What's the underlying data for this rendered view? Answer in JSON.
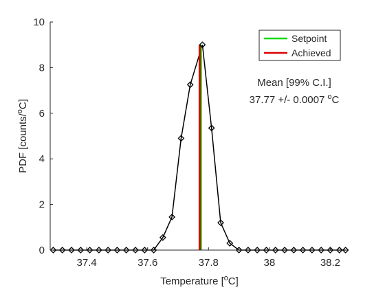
{
  "chart_data": {
    "type": "line",
    "xlabel": "Temperature [°C]",
    "ylabel": "PDF [counts/°C]",
    "xlim": [
      37.28,
      38.26
    ],
    "ylim": [
      0,
      10
    ],
    "xticks": [
      37.4,
      37.6,
      37.8,
      38,
      38.2
    ],
    "xtick_labels": [
      "37.4",
      "37.6",
      "37.8",
      "38",
      "38.2"
    ],
    "yticks": [
      0,
      2,
      4,
      6,
      8,
      10
    ],
    "ytick_labels": [
      "0",
      "2",
      "4",
      "6",
      "8",
      "10"
    ],
    "grid": false,
    "legend_position": "top-right",
    "series": [
      {
        "name": "",
        "color": "#000000",
        "marker": "diamond",
        "x": [
          37.29,
          37.32,
          37.35,
          37.38,
          37.41,
          37.44,
          37.47,
          37.5,
          37.53,
          37.56,
          37.59,
          37.62,
          37.65,
          37.68,
          37.71,
          37.74,
          37.78,
          37.81,
          37.84,
          37.87,
          37.9,
          37.93,
          37.96,
          37.99,
          38.02,
          38.05,
          38.08,
          38.11,
          38.14,
          38.17,
          38.2,
          38.23,
          38.25
        ],
        "y": [
          0,
          0,
          0,
          0,
          0,
          0,
          0,
          0,
          0,
          0,
          0,
          0,
          0.55,
          1.45,
          4.9,
          7.25,
          9.0,
          5.35,
          1.2,
          0.3,
          0,
          0,
          0,
          0,
          0,
          0,
          0,
          0,
          0,
          0,
          0,
          0,
          0
        ]
      },
      {
        "name": "Setpoint",
        "color": "#00dd00",
        "type": "vline",
        "x": 37.775,
        "y": [
          0,
          9
        ]
      },
      {
        "name": "Achieved",
        "color": "#dd0000",
        "type": "vline",
        "x": 37.771,
        "y": [
          0,
          9
        ]
      }
    ],
    "annotation": {
      "line1": "Mean [99% C.I.]",
      "line2": "37.77 +/- 0.0007 °C"
    }
  }
}
